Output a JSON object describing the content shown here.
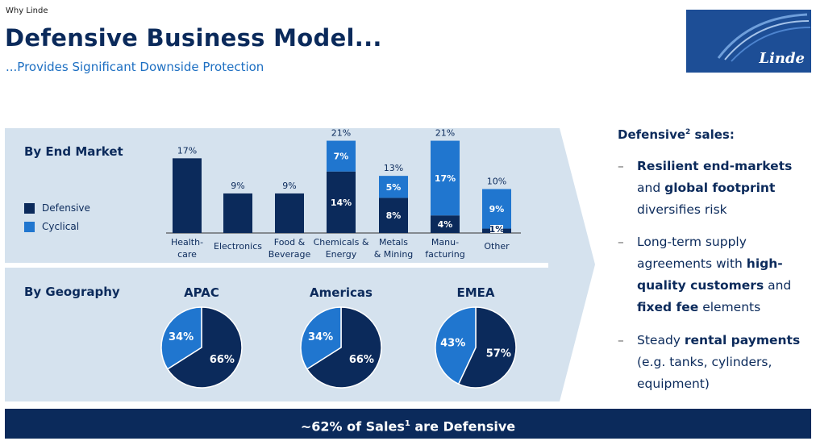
{
  "header": {
    "breadcrumb": "Why Linde",
    "title": "Defensive Business Model...",
    "subtitle": "...Provides Significant Downside Protection",
    "logo_text": "Linde"
  },
  "colors": {
    "defensive": "#0b2a5b",
    "cyclical": "#2076cf",
    "panel": "#d5e2ee",
    "banner": "#0b2a5b"
  },
  "chart_data": [
    {
      "type": "bar",
      "title": "By End Market",
      "stacked": true,
      "categories": [
        "Health-\ncare",
        "Electronics",
        "Food &\nBeverage",
        "Chemicals &\nEnergy",
        "Metals\n& Mining",
        "Manu-\nfacturing",
        "Other"
      ],
      "series": [
        {
          "name": "Defensive",
          "values": [
            17,
            9,
            9,
            14,
            8,
            4,
            1
          ],
          "value_labels": [
            "",
            "",
            "",
            "14%",
            "8%",
            "4%",
            "1%"
          ]
        },
        {
          "name": "Cyclical",
          "values": [
            0,
            0,
            0,
            7,
            5,
            17,
            9
          ],
          "value_labels": [
            "",
            "",
            "",
            "7%",
            "5%",
            "17%",
            "9%"
          ]
        }
      ],
      "total_labels": [
        "17%",
        "9%",
        "9%",
        "21%",
        "13%",
        "21%",
        "10%"
      ],
      "ylim": [
        0,
        21
      ],
      "legend": [
        "Defensive",
        "Cyclical"
      ],
      "legend_position": "left"
    },
    {
      "type": "pie",
      "title": "By Geography",
      "charts": [
        {
          "name": "APAC",
          "slices": [
            {
              "label": "Defensive",
              "value": 66,
              "text": "66%"
            },
            {
              "label": "Cyclical",
              "value": 34,
              "text": "34%"
            }
          ]
        },
        {
          "name": "Americas",
          "slices": [
            {
              "label": "Defensive",
              "value": 66,
              "text": "66%"
            },
            {
              "label": "Cyclical",
              "value": 34,
              "text": "34%"
            }
          ]
        },
        {
          "name": "EMEA",
          "slices": [
            {
              "label": "Defensive",
              "value": 57,
              "text": "57%"
            },
            {
              "label": "Cyclical",
              "value": 43,
              "text": "43%"
            }
          ]
        }
      ]
    }
  ],
  "right_panel": {
    "title": "Defensive",
    "title_sup": "2",
    "title_tail": " sales:",
    "dash": "–",
    "bullets": [
      {
        "segments": [
          {
            "text": "Resilient end-markets",
            "bold": true
          },
          {
            "text": " and ",
            "bold": false
          },
          {
            "text": "global footprint",
            "bold": true
          },
          {
            "text": " diversifies risk",
            "bold": false
          }
        ]
      },
      {
        "segments": [
          {
            "text": "Long-term supply agreements with ",
            "bold": false
          },
          {
            "text": "high-quality customers",
            "bold": true
          },
          {
            "text": " and ",
            "bold": false
          },
          {
            "text": "fixed fee",
            "bold": true
          },
          {
            "text": " elements",
            "bold": false
          }
        ]
      },
      {
        "segments": [
          {
            "text": "Steady ",
            "bold": false
          },
          {
            "text": "rental payments",
            "bold": true
          },
          {
            "text": " (e.g. tanks, cylinders, equipment)",
            "bold": false
          }
        ]
      }
    ]
  },
  "banner": {
    "text_pre": "~62% of Sales",
    "sup": "1",
    "text_post": " are Defensive"
  }
}
